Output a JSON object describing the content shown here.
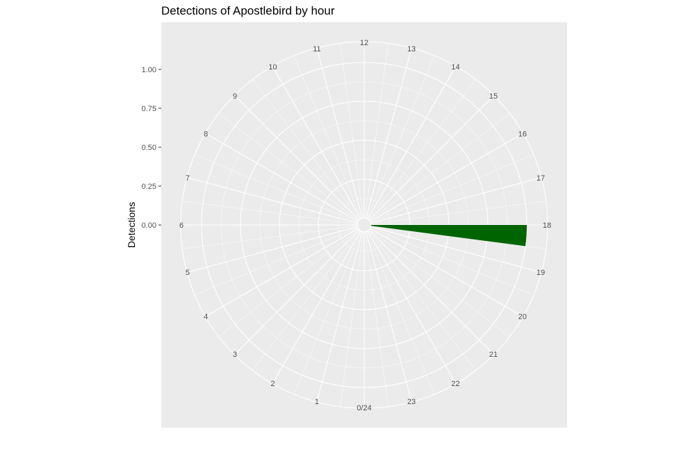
{
  "chart_data": {
    "type": "bar",
    "coord": "polar",
    "title": "Detections of Apostlebird by hour",
    "xlabel": "",
    "ylabel": "Detections",
    "ylim": [
      0,
      1
    ],
    "radial_ticks": [
      "0.00",
      "0.25",
      "0.50",
      "0.75",
      "1.00"
    ],
    "radial_tick_values": [
      0,
      0.25,
      0.5,
      0.75,
      1.0
    ],
    "hour_labels": [
      "0/24",
      "1",
      "2",
      "3",
      "4",
      "5",
      "6",
      "7",
      "8",
      "9",
      "10",
      "11",
      "12",
      "13",
      "14",
      "15",
      "16",
      "17",
      "18",
      "19",
      "20",
      "21",
      "22",
      "23"
    ],
    "categories": [
      18
    ],
    "values": [
      1
    ],
    "bar_width_hours": 0.5,
    "bar_color": "#006400",
    "panel_color": "#ebebeb",
    "grid_color": "#ffffff",
    "grid": true
  }
}
